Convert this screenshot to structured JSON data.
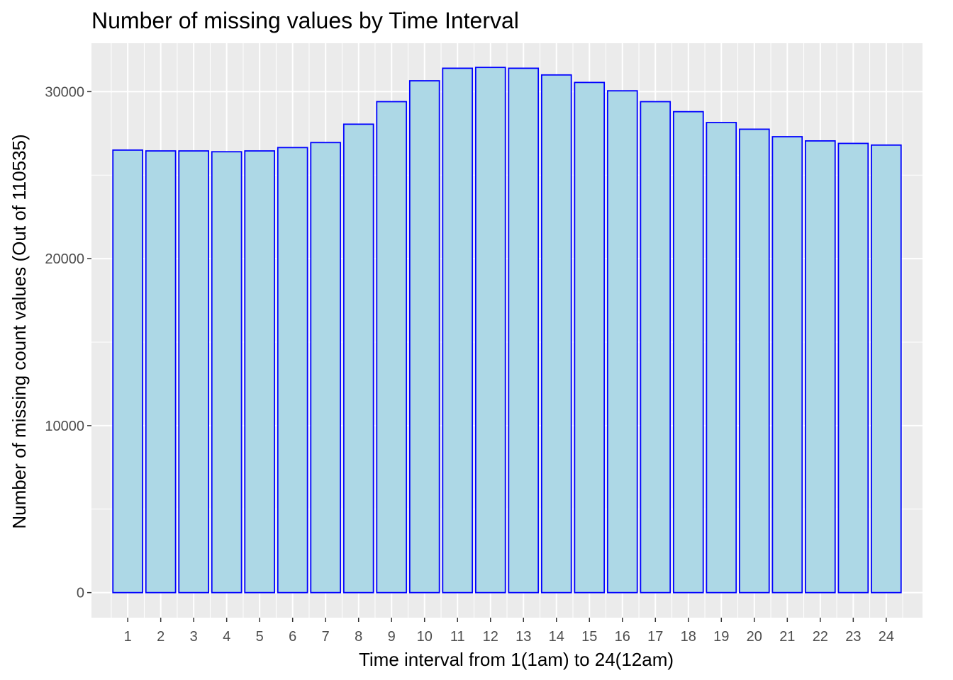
{
  "chart_data": {
    "type": "bar",
    "title": "Number of missing values by Time Interval",
    "xlabel": "Time interval from 1(1am) to 24(12am)",
    "ylabel": "Number of missing count values (Out of 110535)",
    "categories": [
      "1",
      "2",
      "3",
      "4",
      "5",
      "6",
      "7",
      "8",
      "9",
      "10",
      "11",
      "12",
      "13",
      "14",
      "15",
      "16",
      "17",
      "18",
      "19",
      "20",
      "21",
      "22",
      "23",
      "24"
    ],
    "values": [
      26500,
      26450,
      26450,
      26400,
      26450,
      26650,
      26950,
      28050,
      29400,
      30650,
      31400,
      31450,
      31400,
      31000,
      30550,
      30050,
      29400,
      28800,
      28150,
      27750,
      27300,
      27050,
      26900,
      26800
    ],
    "ylim": [
      -1500,
      32900
    ],
    "yticks": [
      0,
      10000,
      20000,
      30000
    ],
    "ytick_labels": [
      "0",
      "10000",
      "20000",
      "30000"
    ],
    "grid": true,
    "colors": {
      "bar_fill": "#add8e6",
      "bar_stroke": "#0000ff",
      "panel": "#ebebeb",
      "grid": "#ffffff"
    }
  }
}
